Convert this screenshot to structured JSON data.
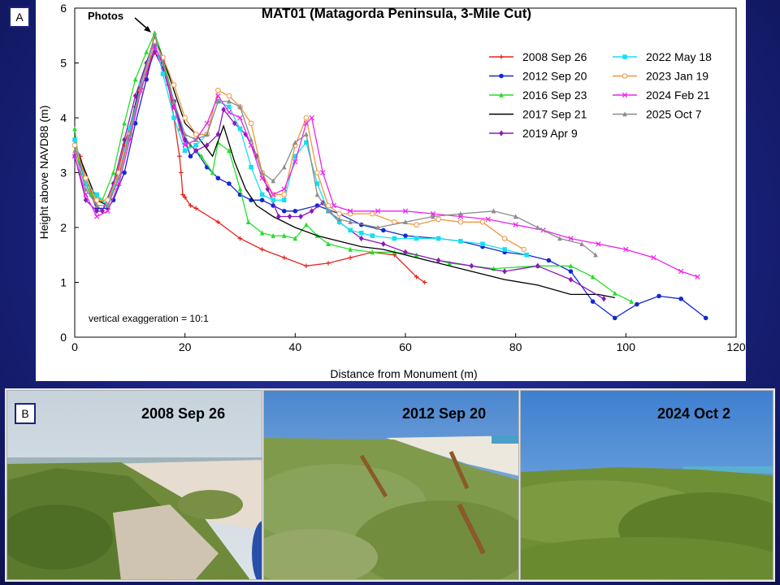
{
  "panel_a_tag": "A",
  "panel_b_tag": "B",
  "photos_annotation": "Photos",
  "exaggeration_note": "vertical exaggeration = 10:1",
  "chart_data": {
    "type": "line",
    "title": "MAT01 (Matagorda Peninsula, 3-Mile Cut)",
    "xlabel": "Distance from Monument (m)",
    "ylabel": "Height above NAVD88 (m)",
    "xlim": [
      0,
      120
    ],
    "ylim": [
      0,
      6
    ],
    "xticks": [
      "0",
      "20",
      "40",
      "60",
      "80",
      "100",
      "120"
    ],
    "yticks": [
      "0",
      "1",
      "2",
      "3",
      "4",
      "5",
      "6"
    ],
    "legend_position": "top-right",
    "series": [
      {
        "name": "2008 Sep 26",
        "color": "#e8231e",
        "marker": "plus",
        "x": [
          0,
          1,
          2,
          4,
          5,
          7,
          9,
          11,
          13,
          14.5,
          16,
          17,
          18,
          19,
          19.3,
          19.6,
          20,
          21,
          22,
          26,
          30,
          34,
          38,
          42,
          46,
          50,
          54,
          58,
          62,
          63.5
        ],
        "y": [
          3.5,
          3.3,
          2.9,
          2.4,
          2.3,
          2.7,
          3.5,
          4.2,
          4.8,
          5.2,
          5.0,
          4.6,
          4.0,
          3.3,
          3.0,
          2.6,
          2.55,
          2.4,
          2.35,
          2.1,
          1.8,
          1.6,
          1.45,
          1.3,
          1.35,
          1.45,
          1.55,
          1.5,
          1.1,
          1.0
        ]
      },
      {
        "name": "2012 Sep 20",
        "color": "#1428d2",
        "marker": "circle",
        "x": [
          0,
          2,
          4,
          6,
          7,
          9,
          11,
          13,
          14.5,
          16,
          18,
          20,
          21,
          22,
          24,
          26,
          28,
          30,
          32,
          34,
          36,
          38,
          40,
          44,
          48,
          52,
          56,
          60,
          66,
          70,
          74,
          78,
          82,
          86,
          90,
          94,
          98,
          102,
          106,
          110,
          114.5
        ],
        "y": [
          3.5,
          2.8,
          2.35,
          2.35,
          2.5,
          3.0,
          3.9,
          4.7,
          5.3,
          5.0,
          4.3,
          3.6,
          3.3,
          3.4,
          3.1,
          2.9,
          2.8,
          2.6,
          2.5,
          2.5,
          2.4,
          2.3,
          2.3,
          2.4,
          2.25,
          2.05,
          1.95,
          1.85,
          1.8,
          1.75,
          1.65,
          1.55,
          1.5,
          1.4,
          1.2,
          0.65,
          0.35,
          0.6,
          0.75,
          0.7,
          0.35
        ]
      },
      {
        "name": "2016 Sep 23",
        "color": "#22e028",
        "marker": "triangle",
        "x": [
          0,
          1,
          3,
          5,
          7,
          9,
          11,
          13,
          14.5,
          16,
          18,
          19,
          21,
          23,
          25,
          26,
          28,
          30,
          31.5,
          34,
          36,
          38,
          40,
          42,
          44,
          46,
          50,
          54,
          58,
          62,
          68,
          76,
          84,
          90,
          94,
          98,
          101
        ],
        "y": [
          3.8,
          3.0,
          2.6,
          2.5,
          3.0,
          3.9,
          4.7,
          5.2,
          5.55,
          5.1,
          4.3,
          3.8,
          3.5,
          3.3,
          3.0,
          3.55,
          3.4,
          2.7,
          2.1,
          1.9,
          1.85,
          1.85,
          1.8,
          2.05,
          1.85,
          1.7,
          1.6,
          1.55,
          1.55,
          1.5,
          1.35,
          1.25,
          1.3,
          1.3,
          1.1,
          0.8,
          0.65
        ]
      },
      {
        "name": "2017 Sep 21",
        "color": "#000000",
        "marker": "none",
        "x": [
          0,
          2,
          4,
          6,
          8,
          10,
          12,
          14.5,
          16,
          18,
          20,
          22,
          25,
          27,
          29,
          31,
          33,
          36,
          40,
          44,
          48,
          52,
          56,
          60,
          66,
          72,
          78,
          84,
          90,
          95,
          98
        ],
        "y": [
          3.5,
          3.0,
          2.5,
          2.4,
          2.9,
          3.8,
          4.7,
          5.45,
          5.1,
          4.5,
          3.9,
          3.7,
          3.3,
          3.85,
          3.2,
          2.7,
          2.4,
          2.2,
          2.0,
          1.85,
          1.75,
          1.65,
          1.6,
          1.5,
          1.35,
          1.2,
          1.05,
          0.95,
          0.78,
          0.78,
          0.72
        ]
      },
      {
        "name": "2019 Apr 9",
        "color": "#8a1ab8",
        "marker": "diamond",
        "x": [
          0,
          2,
          4,
          5,
          7,
          9,
          11,
          13,
          14.5,
          16,
          18,
          20,
          22,
          24,
          26,
          27,
          29,
          31,
          33,
          35,
          37,
          39,
          41,
          43,
          45,
          48,
          52,
          56,
          60,
          66,
          72,
          78,
          84,
          90,
          96
        ],
        "y": [
          3.3,
          2.5,
          2.3,
          2.3,
          2.8,
          3.6,
          4.4,
          5.0,
          5.2,
          4.9,
          4.2,
          3.6,
          3.4,
          3.5,
          3.7,
          4.15,
          3.9,
          3.7,
          3.3,
          2.7,
          2.2,
          2.2,
          2.2,
          2.3,
          2.45,
          2.1,
          1.8,
          1.7,
          1.55,
          1.4,
          1.3,
          1.2,
          1.3,
          1.05,
          0.7
        ]
      },
      {
        "name": "2022 May 18",
        "color": "#14e0f0",
        "marker": "square",
        "x": [
          0,
          2,
          4,
          6,
          8,
          10,
          12,
          14.5,
          16,
          18,
          20,
          22,
          24,
          26,
          28,
          30,
          32,
          34,
          36,
          38,
          40,
          42,
          44,
          46,
          48,
          50,
          52,
          54,
          58,
          62,
          66,
          70,
          74,
          78,
          82
        ],
        "y": [
          3.6,
          2.8,
          2.6,
          2.4,
          3.0,
          3.8,
          4.6,
          5.4,
          4.8,
          4.0,
          3.4,
          3.5,
          3.7,
          4.3,
          4.2,
          3.8,
          3.1,
          2.6,
          2.5,
          2.5,
          3.3,
          3.55,
          2.8,
          2.3,
          2.1,
          1.95,
          1.9,
          1.85,
          1.8,
          1.8,
          1.8,
          1.75,
          1.7,
          1.6,
          1.5
        ]
      },
      {
        "name": "2023 Jan 19",
        "color": "#f0963c",
        "marker": "circle-open",
        "x": [
          0,
          2,
          4,
          6,
          8,
          10,
          12,
          14.5,
          16,
          18,
          20,
          22,
          24,
          26,
          28,
          30,
          32,
          34,
          36,
          38,
          40,
          42,
          44,
          46,
          48,
          50,
          54,
          58,
          62,
          66,
          70,
          74,
          78,
          81.5
        ],
        "y": [
          3.5,
          2.9,
          2.5,
          2.5,
          3.0,
          3.7,
          4.5,
          5.4,
          5.1,
          4.6,
          4.0,
          3.7,
          3.7,
          4.5,
          4.4,
          4.2,
          3.9,
          3.0,
          2.6,
          2.6,
          3.5,
          4.0,
          3.0,
          2.4,
          2.25,
          2.25,
          2.25,
          2.1,
          2.05,
          2.15,
          2.1,
          2.1,
          1.8,
          1.6
        ]
      },
      {
        "name": "2024 Feb 21",
        "color": "#ee22ee",
        "marker": "x",
        "x": [
          0,
          2,
          4,
          6,
          8,
          10,
          12,
          14.5,
          16,
          18,
          20,
          22,
          24,
          26,
          28,
          30,
          32,
          34,
          36,
          38,
          40,
          42,
          43,
          45,
          47,
          50,
          55,
          60,
          65,
          70,
          75,
          80,
          85,
          90,
          95,
          100,
          105,
          110,
          113
        ],
        "y": [
          3.3,
          2.6,
          2.2,
          2.3,
          2.8,
          3.6,
          4.5,
          5.3,
          5.0,
          4.2,
          3.5,
          3.6,
          3.9,
          4.4,
          4.1,
          4.0,
          3.5,
          2.9,
          2.6,
          2.7,
          3.2,
          3.9,
          4.0,
          3.0,
          2.4,
          2.3,
          2.3,
          2.3,
          2.25,
          2.2,
          2.15,
          2.05,
          1.95,
          1.8,
          1.7,
          1.6,
          1.45,
          1.2,
          1.1
        ]
      },
      {
        "name": "2025 Oct 7",
        "color": "#8c8c8c",
        "marker": "triangle",
        "x": [
          0,
          2,
          4,
          6,
          8,
          10,
          12,
          14.5,
          16,
          18,
          20,
          22,
          24,
          26,
          28,
          30,
          32,
          34,
          36,
          38,
          40,
          42,
          44,
          46,
          48,
          50,
          55,
          60,
          65,
          70,
          76,
          80,
          84,
          88,
          92,
          94.5
        ],
        "y": [
          3.4,
          2.7,
          2.4,
          2.4,
          2.9,
          3.7,
          4.6,
          5.5,
          5.0,
          4.3,
          3.7,
          3.6,
          3.7,
          4.3,
          4.3,
          4.2,
          3.6,
          3.0,
          2.85,
          3.1,
          3.55,
          3.7,
          2.6,
          2.3,
          2.15,
          2.1,
          2.0,
          2.1,
          2.2,
          2.25,
          2.3,
          2.2,
          2.0,
          1.8,
          1.7,
          1.5
        ]
      }
    ]
  },
  "photos": [
    {
      "label": "2008 Sep 26"
    },
    {
      "label": "2012 Sep 20"
    },
    {
      "label": "2024 Oct 2"
    }
  ]
}
